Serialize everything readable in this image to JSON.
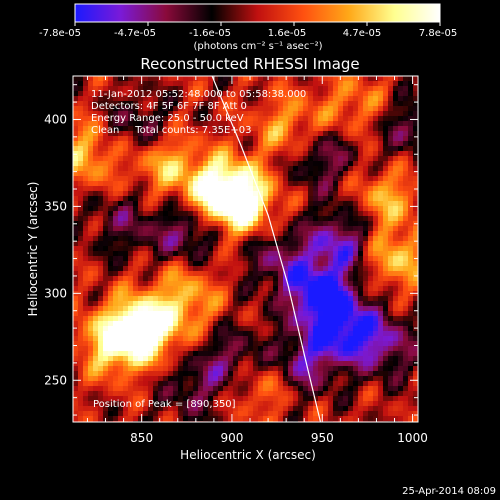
{
  "colorbar": {
    "tick_labels": [
      "-7.8e-05",
      "-4.7e-05",
      "-1.6e-05",
      "1.6e-05",
      "4.7e-05",
      "7.8e-05"
    ],
    "unit_label": "(photons cm⁻² s⁻¹ asec⁻²)",
    "range": [
      -7.8e-05,
      7.8e-05
    ],
    "colors": [
      "#1a1aff",
      "#7a1ad8",
      "#8a0a3a",
      "#000000",
      "#c01010",
      "#ff5010",
      "#ffa818",
      "#ffff90",
      "#ffffff"
    ]
  },
  "chart_data": {
    "type": "heatmap",
    "title": "Reconstructed RHESSI Image",
    "xlabel": "Heliocentric X (arcsec)",
    "ylabel": "Heliocentric Y (arcsec)",
    "xlim": [
      812,
      1003
    ],
    "ylim": [
      226,
      425
    ],
    "x_ticks": [
      850,
      900,
      950,
      1000
    ],
    "y_ticks": [
      250,
      300,
      350,
      400
    ],
    "x_tick_labels": [
      "850",
      "900",
      "950",
      "1000"
    ],
    "y_tick_labels": [
      "250",
      "300",
      "350",
      "400"
    ],
    "limb_curve": [
      [
        889,
        425
      ],
      [
        905,
        385
      ],
      [
        920,
        345
      ],
      [
        931,
        305
      ],
      [
        940,
        265
      ],
      [
        949,
        226
      ]
    ],
    "emission_sources": [
      {
        "x": 905,
        "y": 352,
        "value": 1.0
      },
      {
        "x": 892,
        "y": 360,
        "value": 0.85
      },
      {
        "x": 852,
        "y": 280,
        "value": 1.0
      },
      {
        "x": 835,
        "y": 272,
        "value": 0.8
      },
      {
        "x": 862,
        "y": 375,
        "value": 0.55
      },
      {
        "x": 990,
        "y": 320,
        "value": 0.6
      },
      {
        "x": 985,
        "y": 355,
        "value": 0.5
      },
      {
        "x": 820,
        "y": 380,
        "value": 0.55
      },
      {
        "x": 915,
        "y": 248,
        "value": 0.45
      },
      {
        "x": 932,
        "y": 395,
        "value": 0.5
      },
      {
        "x": 968,
        "y": 408,
        "value": 0.4
      },
      {
        "x": 875,
        "y": 318,
        "value": 0.3
      },
      {
        "x": 875,
        "y": 294,
        "value": 0.45
      },
      {
        "x": 948,
        "y": 300,
        "value": -1.0
      },
      {
        "x": 962,
        "y": 280,
        "value": -0.9
      },
      {
        "x": 940,
        "y": 260,
        "value": -0.65
      },
      {
        "x": 960,
        "y": 330,
        "value": -0.75
      },
      {
        "x": 985,
        "y": 270,
        "value": -0.6
      },
      {
        "x": 875,
        "y": 332,
        "value": -0.75
      },
      {
        "x": 840,
        "y": 340,
        "value": -0.4
      },
      {
        "x": 925,
        "y": 320,
        "value": -0.5
      },
      {
        "x": 900,
        "y": 262,
        "value": -0.55
      },
      {
        "x": 848,
        "y": 395,
        "value": -0.45
      },
      {
        "x": 950,
        "y": 378,
        "value": -0.55
      },
      {
        "x": 998,
        "y": 395,
        "value": -0.45
      },
      {
        "x": 878,
        "y": 245,
        "value": -0.4
      }
    ]
  },
  "annotations": {
    "time_range": "11-Jan-2012 05:52:48.000 to 05:58:38.000",
    "detectors": "Detectors: 4F 5F 6F 7F 8F  Att 0",
    "energy_range": "Energy Range: 25.0 - 50.0 keV",
    "clean_total": "Clean     Total counts: 7.35E+03",
    "peak_position": "Position of Peak = [890,350]"
  },
  "footer": {
    "timestamp": "25-Apr-2014 08:09"
  }
}
